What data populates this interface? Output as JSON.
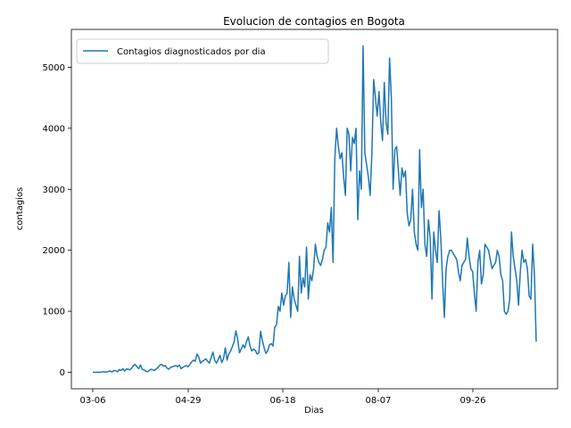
{
  "chart_data": {
    "type": "line",
    "title": "Evolucion de contagios en Bogota",
    "xlabel": "Dias",
    "ylabel": "contagios",
    "xticks": [
      "03-06",
      "04-29",
      "06-18",
      "08-07",
      "09-26"
    ],
    "yticks": [
      0,
      1000,
      2000,
      3000,
      4000,
      5000
    ],
    "ylim": [
      -270,
      5620
    ],
    "grid": false,
    "legend_position": "top-left",
    "series": [
      {
        "name": "Contagios diagnosticados por dia",
        "color": "#1f77b4",
        "values": [
          0,
          0,
          1,
          2,
          0,
          5,
          10,
          4,
          8,
          15,
          20,
          5,
          30,
          25,
          10,
          45,
          30,
          60,
          20,
          55,
          50,
          40,
          70,
          110,
          130,
          90,
          60,
          120,
          50,
          40,
          20,
          10,
          30,
          50,
          40,
          30,
          60,
          80,
          120,
          130,
          100,
          110,
          70,
          50,
          80,
          90,
          100,
          110,
          90,
          120,
          60,
          80,
          100,
          110,
          90,
          130,
          170,
          200,
          180,
          300,
          250,
          150,
          180,
          200,
          220,
          180,
          150,
          240,
          330,
          200,
          150,
          210,
          280,
          160,
          220,
          400,
          200,
          300,
          350,
          420,
          500,
          680,
          550,
          320,
          380,
          450,
          400,
          500,
          580,
          430,
          350,
          380,
          360,
          300,
          320,
          670,
          520,
          400,
          310,
          350,
          450,
          470,
          430,
          740,
          780,
          1080,
          1000,
          1300,
          1100,
          1250,
          1300,
          1800,
          900,
          1400,
          1200,
          1100,
          1000,
          1900,
          1300,
          1550,
          1400,
          2050,
          1200,
          1600,
          1500,
          1700,
          2100,
          1900,
          1800,
          1750,
          1850,
          2000,
          2050,
          2450,
          2300,
          2700,
          1800,
          3500,
          4000,
          3700,
          3500,
          3600,
          3200,
          2900,
          4000,
          3900,
          3300,
          3850,
          3750,
          4000,
          2500,
          3300,
          3000,
          5350,
          3600,
          3400,
          3200,
          2900,
          3600,
          4800,
          4500,
          4200,
          4600,
          4100,
          3800,
          4750,
          4100,
          3900,
          5150,
          4500,
          3000,
          3650,
          3700,
          3300,
          2900,
          3350,
          3200,
          3300,
          2600,
          2400,
          2500,
          3000,
          2300,
          2100,
          2000,
          3650,
          2700,
          3000,
          2100,
          1900,
          2500,
          2200,
          1200,
          2300,
          2000,
          1800,
          2650,
          2200,
          1500,
          900,
          1700,
          1900,
          2000,
          2000,
          1950,
          1900,
          1850,
          1650,
          1500,
          1750,
          1800,
          1850,
          2200,
          1900,
          1700,
          1650,
          1300,
          1000,
          1800,
          2000,
          1450,
          1600,
          2100,
          2050,
          2000,
          1850,
          1700,
          1750,
          1800,
          2000,
          1900,
          1600,
          1500,
          1000,
          950,
          1000,
          1200,
          2300,
          1900,
          1700,
          1500,
          1100,
          1650,
          2000,
          1800,
          1850,
          1700,
          1250,
          1200,
          2100,
          1600,
          500
        ]
      }
    ]
  }
}
